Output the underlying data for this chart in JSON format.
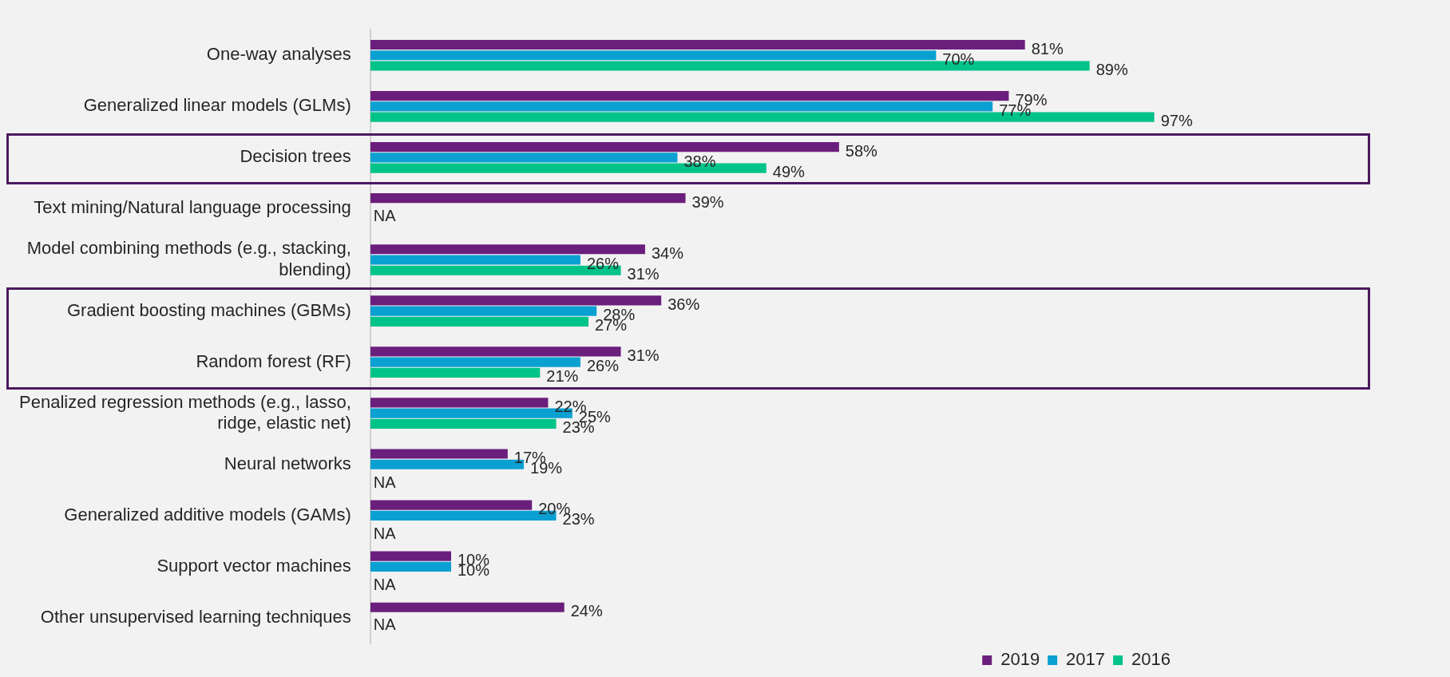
{
  "chart_data": {
    "type": "bar",
    "orientation": "horizontal",
    "categories": [
      "One-way analyses",
      "Generalized linear models (GLMs)",
      "Decision trees",
      "Text mining/Natural language processing",
      "Model combining methods (e.g., stacking, blending)",
      "Gradient boosting machines (GBMs)",
      "Random forest (RF)",
      "Penalized regression methods (e.g., lasso, ridge, elastic net)",
      "Neural networks",
      "Generalized additive models (GAMs)",
      "Support vector machines",
      "Other unsupervised learning techniques"
    ],
    "series": [
      {
        "name": "2019",
        "color": "#6b1f7c",
        "values": [
          81,
          79,
          58,
          39,
          34,
          36,
          31,
          22,
          17,
          20,
          10,
          24
        ],
        "value_labels": [
          "81%",
          "79%",
          "58%",
          "39%",
          "34%",
          "36%",
          "31%",
          "22%",
          "17%",
          "20%",
          "10%",
          "24%"
        ]
      },
      {
        "name": "2017",
        "color": "#0aa0d2",
        "values": [
          70,
          77,
          38,
          null,
          26,
          28,
          26,
          25,
          19,
          23,
          10,
          null
        ],
        "value_labels": [
          "70%",
          "77%",
          "38%",
          "NA",
          "26%",
          "28%",
          "26%",
          "25%",
          "19%",
          "23%",
          "10%",
          "NA"
        ]
      },
      {
        "name": "2016",
        "color": "#00c389",
        "values": [
          89,
          97,
          49,
          null,
          31,
          27,
          21,
          23,
          null,
          null,
          null,
          null
        ],
        "value_labels": [
          "89%",
          "97%",
          "49%",
          null,
          "31%",
          "27%",
          "21%",
          "23%",
          "NA",
          "NA",
          "NA",
          null
        ]
      }
    ],
    "tick_labels": "y",
    "legend": "bottom right"
  }
}
